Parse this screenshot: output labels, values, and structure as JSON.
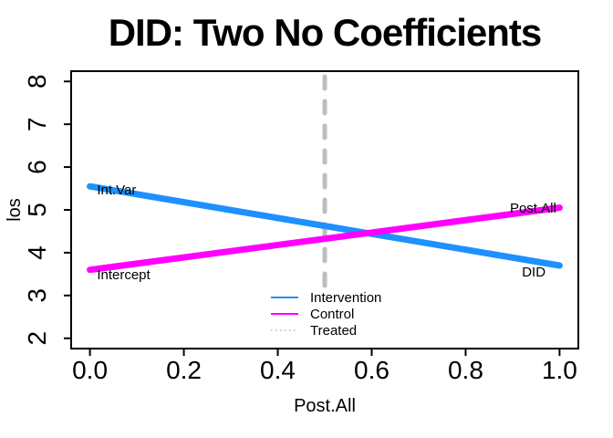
{
  "chart_data": {
    "type": "line",
    "title": "DID: Two No Coefficients",
    "xlabel": "Post.All",
    "ylabel": "los",
    "xlim": [
      0,
      1
    ],
    "ylim": [
      2,
      8
    ],
    "axis_padding_frac": 0.04,
    "grid": false,
    "x_ticks": [
      {
        "value": 0.0,
        "label": "0.0"
      },
      {
        "value": 0.2,
        "label": "0.2"
      },
      {
        "value": 0.4,
        "label": "0.4"
      },
      {
        "value": 0.6,
        "label": "0.6"
      },
      {
        "value": 0.8,
        "label": "0.8"
      },
      {
        "value": 1.0,
        "label": "1.0"
      }
    ],
    "y_ticks": [
      {
        "value": 2,
        "label": "2"
      },
      {
        "value": 3,
        "label": "3"
      },
      {
        "value": 4,
        "label": "4"
      },
      {
        "value": 5,
        "label": "5"
      },
      {
        "value": 6,
        "label": "6"
      },
      {
        "value": 7,
        "label": "7"
      },
      {
        "value": 8,
        "label": "8"
      }
    ],
    "series": [
      {
        "name": "Intervention",
        "color": "#1E90FF",
        "style": "solid",
        "width": 7,
        "x": [
          0,
          1
        ],
        "y": [
          5.55,
          3.7
        ]
      },
      {
        "name": "Control",
        "color": "#FF00FF",
        "style": "solid",
        "width": 7,
        "x": [
          0,
          1
        ],
        "y": [
          3.6,
          5.05
        ]
      }
    ],
    "vline": {
      "name": "Treated",
      "x": 0.5,
      "color": "#BEBEBE",
      "style": "dashed",
      "width": 5
    },
    "annotations": [
      {
        "text": "Int.Var",
        "x": 0.015,
        "y": 5.36,
        "anchor": "start"
      },
      {
        "text": "Intercept",
        "x": 0.015,
        "y": 3.38,
        "anchor": "start"
      },
      {
        "text": "Post.All",
        "x": 0.993,
        "y": 4.94,
        "anchor": "end"
      },
      {
        "text": "DID",
        "x": 0.92,
        "y": 3.44,
        "anchor": "start"
      }
    ],
    "legend": {
      "position": "bottom-center",
      "entries": [
        {
          "label": "Intervention",
          "color": "#1E90FF",
          "line": "solid"
        },
        {
          "label": "Control",
          "color": "#FF00FF",
          "line": "solid"
        },
        {
          "label": "Treated",
          "color": "#BEBEBE",
          "line": "dotted"
        }
      ]
    }
  },
  "colors": {
    "intervention": "#1E90FF",
    "control": "#FF00FF",
    "treated_line": "#BEBEBE",
    "axis": "#000000",
    "text": "#000000",
    "background": "#FFFFFF"
  }
}
